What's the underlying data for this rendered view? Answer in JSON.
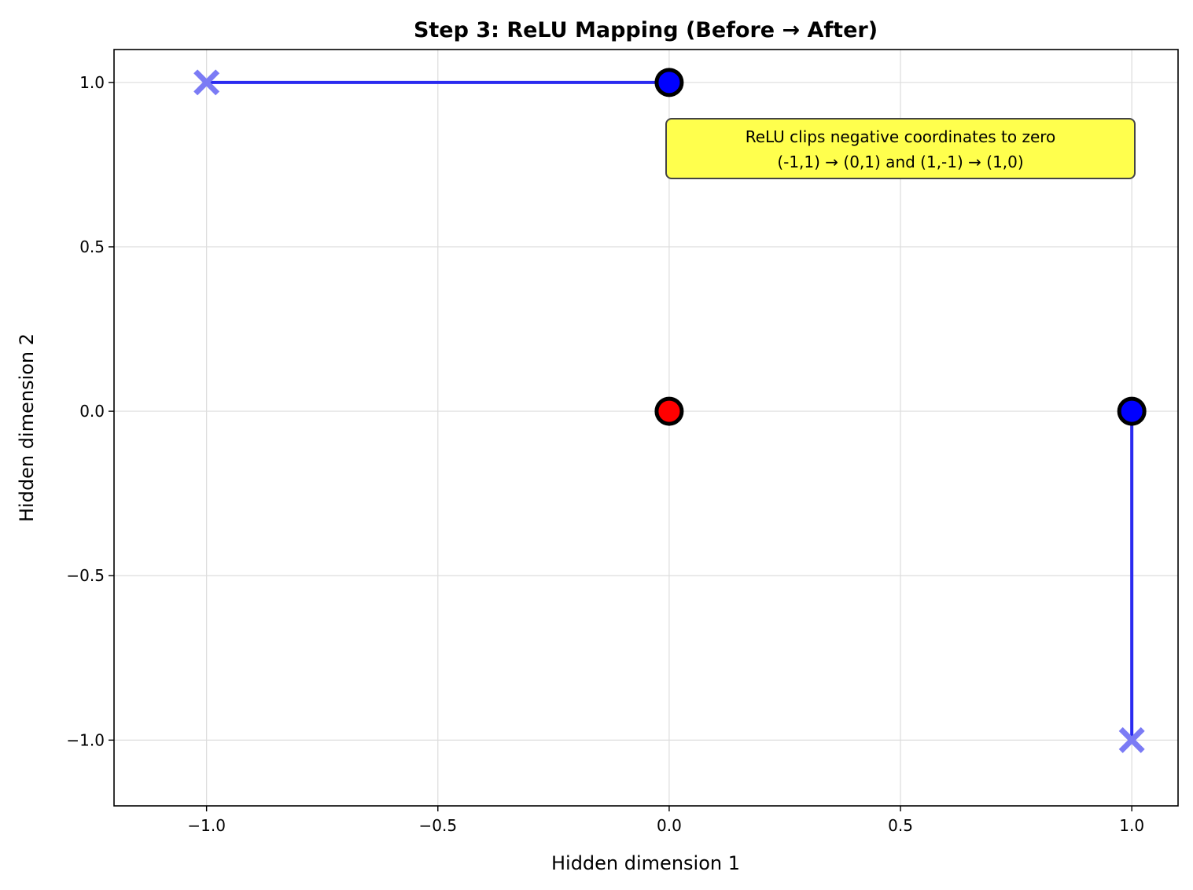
{
  "chart_data": {
    "type": "scatter",
    "title": "Step 3: ReLU Mapping (Before → After)",
    "xlabel": "Hidden dimension 1",
    "ylabel": "Hidden dimension 2",
    "xlim": [
      -1.2,
      1.1
    ],
    "ylim": [
      -1.2,
      1.1
    ],
    "grid": true,
    "xticks": [
      -1.0,
      -0.5,
      0.0,
      0.5,
      1.0
    ],
    "xtick_labels": [
      "−1.0",
      "−0.5",
      "0.0",
      "0.5",
      "1.0"
    ],
    "yticks": [
      -1.0,
      -0.5,
      0.0,
      0.5,
      1.0
    ],
    "ytick_labels": [
      "−1.0",
      "−0.5",
      "0.0",
      "0.5",
      "1.0"
    ],
    "series": [
      {
        "marker": "x",
        "color": "#7b7bf5",
        "points": [
          {
            "x": -1,
            "y": 1
          },
          {
            "x": 1,
            "y": -1
          }
        ]
      },
      {
        "marker": "circle",
        "color": "#0000ff",
        "points": [
          {
            "x": 0,
            "y": 1
          },
          {
            "x": 1,
            "y": 0
          }
        ]
      },
      {
        "marker": "circle",
        "color": "#ff0000",
        "points": [
          {
            "x": 0,
            "y": 0
          }
        ]
      }
    ],
    "arrows": [
      {
        "from": [
          -1,
          1
        ],
        "to": [
          0,
          1
        ],
        "color": "#2a2af0"
      },
      {
        "from": [
          1,
          -1
        ],
        "to": [
          1,
          0
        ],
        "color": "#2a2af0"
      }
    ],
    "annotation": {
      "lines": [
        "ReLU clips negative coordinates to zero",
        "(-1,1) → (0,1) and (1,-1) → (1,0)"
      ],
      "anchor": [
        0.5,
        0.8
      ],
      "background": "#ffff4d"
    }
  }
}
